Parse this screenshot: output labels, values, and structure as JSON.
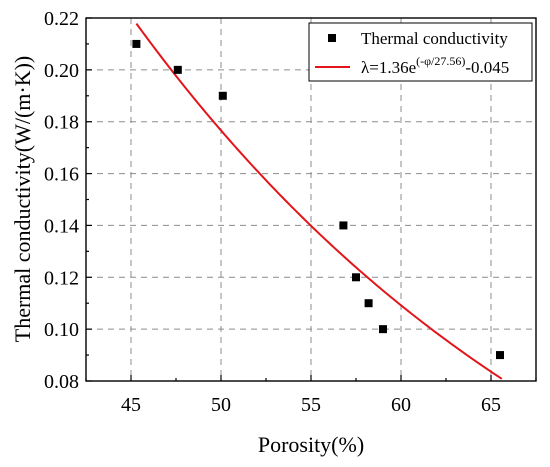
{
  "chart_data": {
    "type": "scatter",
    "xlabel": "Porosity(%)",
    "ylabel": "Thermal conductivity(W/(m·K))",
    "xlim": [
      42.5,
      67.5
    ],
    "ylim": [
      0.08,
      0.22
    ],
    "x_ticks": [
      45,
      50,
      55,
      60,
      65
    ],
    "x_tick_labels": [
      "45",
      "50",
      "55",
      "60",
      "65"
    ],
    "y_ticks": [
      0.08,
      0.1,
      0.12,
      0.14,
      0.16,
      0.18,
      0.2,
      0.22
    ],
    "y_tick_labels": [
      "0.08",
      "0.10",
      "0.12",
      "0.14",
      "0.16",
      "0.18",
      "0.20",
      "0.22"
    ],
    "grid": true,
    "legend_position": "top-right",
    "series": [
      {
        "name": "Thermal conductivity",
        "kind": "scatter",
        "marker": "square",
        "color": "#000000",
        "x": [
          45.3,
          47.6,
          50.1,
          56.8,
          57.5,
          58.2,
          59.0,
          65.5
        ],
        "y": [
          0.21,
          0.2,
          0.19,
          0.14,
          0.12,
          0.11,
          0.1,
          0.09
        ]
      },
      {
        "name": "λ=1.36e(-φ/27.56)-0.045",
        "legend_parts": {
          "base": "λ=1.36e",
          "exponent": "(-φ/27.56)",
          "tail": "-0.045"
        },
        "kind": "line",
        "color": "#e3151a",
        "model": {
          "a": 1.36,
          "b": 27.56,
          "c": -0.045
        },
        "x_range": [
          45.3,
          65.6
        ]
      }
    ]
  }
}
